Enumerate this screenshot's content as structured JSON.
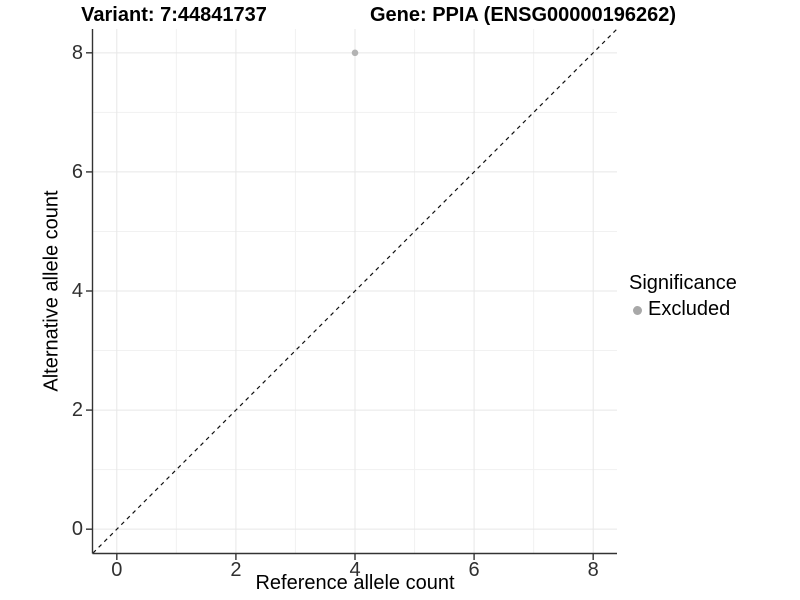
{
  "titles": {
    "variant": "Variant: 7:44841737",
    "gene": "Gene: PPIA (ENSG00000196262)"
  },
  "chart_data": {
    "type": "scatter",
    "title_left": "Variant: 7:44841737",
    "title_right": "Gene: PPIA (ENSG00000196262)",
    "xlabel": "Reference allele count",
    "ylabel": "Alternative allele count",
    "xlim": [
      -0.4,
      8.4
    ],
    "ylim": [
      -0.4,
      8.4
    ],
    "x_major_ticks": [
      0,
      2,
      4,
      6,
      8
    ],
    "y_major_ticks": [
      0,
      2,
      4,
      6,
      8
    ],
    "x_minor_ticks": [
      1,
      3,
      5,
      7
    ],
    "y_minor_ticks": [
      1,
      3,
      5,
      7
    ],
    "grid": true,
    "points": [
      {
        "x": 4,
        "y": 8,
        "series": "Excluded"
      }
    ],
    "reference_line": {
      "type": "identity",
      "style": "dashed",
      "color": "#111111"
    },
    "legend": {
      "title": "Significance",
      "position": "right",
      "entries": [
        {
          "label": "Excluded",
          "color": "#a8a8a8",
          "marker": "circle"
        }
      ]
    },
    "colors": {
      "point": "#b3b3b3",
      "grid_major": "#e7e7e7",
      "grid_minor": "#f1f1f1",
      "axis_line": "#333333",
      "tick_mark": "#333333",
      "tick_text": "#303030"
    }
  }
}
